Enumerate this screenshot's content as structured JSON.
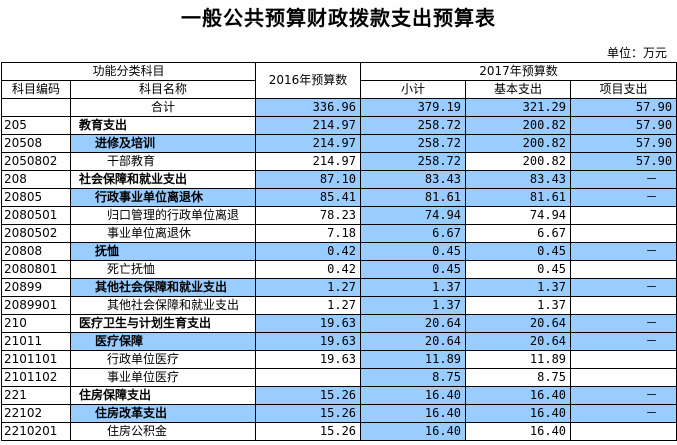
{
  "header": {
    "title": "一般公共预算财政拨款支出预算表",
    "unit": "单位：万元"
  },
  "table": {
    "columns": {
      "group": "功能分类科目",
      "code": "科目编码",
      "name": "科目名称",
      "y2016": "2016年预算数",
      "y2017": "2017年预算数",
      "subtotal": "小计",
      "basic": "基本支出",
      "project": "项目支出"
    },
    "rows": [
      [
        null,
        "合计",
        "336.96",
        "379.19",
        "321.29",
        "57.90"
      ],
      [
        "205",
        "教育支出",
        "214.97",
        "258.72",
        "200.82",
        "57.90"
      ],
      [
        "20508",
        "进修及培训",
        "214.97",
        "258.72",
        "200.82",
        "57.90"
      ],
      [
        "2050802",
        "干部教育",
        "214.97",
        "258.72",
        "200.82",
        "57.90"
      ],
      [
        "208",
        "社会保障和就业支出",
        "87.10",
        "83.43",
        "83.43",
        "－"
      ],
      [
        "20805",
        "行政事业单位离退休",
        "85.41",
        "81.61",
        "81.61",
        "－"
      ],
      [
        "2080501",
        "归口管理的行政单位离退",
        "78.23",
        "74.94",
        "74.94",
        null
      ],
      [
        "2080502",
        "事业单位离退休",
        "7.18",
        "6.67",
        "6.67",
        null
      ],
      [
        "20808",
        "抚恤",
        "0.42",
        "0.45",
        "0.45",
        "－"
      ],
      [
        "2080801",
        "死亡抚恤",
        "0.42",
        "0.45",
        "0.45",
        null
      ],
      [
        "20899",
        "其他社会保障和就业支出",
        "1.27",
        "1.37",
        "1.37",
        "－"
      ],
      [
        "2089901",
        "其他社会保障和就业支出",
        "1.27",
        "1.37",
        "1.37",
        null
      ],
      [
        "210",
        "医疗卫生与计划生育支出",
        "19.63",
        "20.64",
        "20.64",
        "－"
      ],
      [
        "21011",
        "医疗保障",
        "19.63",
        "20.64",
        "20.64",
        "－"
      ],
      [
        "2101101",
        "行政单位医疗",
        "19.63",
        "11.89",
        "11.89",
        null
      ],
      [
        "2101102",
        "事业单位医疗",
        null,
        "8.75",
        "8.75",
        null
      ],
      [
        "221",
        "住房保障支出",
        "15.26",
        "16.40",
        "16.40",
        "－"
      ],
      [
        "22102",
        "住房改革支出",
        "15.26",
        "16.40",
        "16.40",
        "－"
      ],
      [
        "2210201",
        "住房公积金",
        "15.26",
        "16.40",
        "16.40",
        null
      ]
    ]
  }
}
